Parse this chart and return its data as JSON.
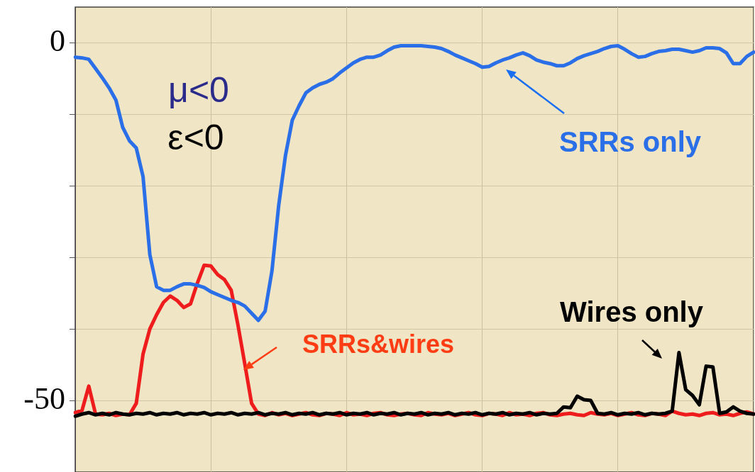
{
  "chart_data": {
    "type": "line",
    "categories": [
      null,
      null,
      null,
      null,
      null,
      null,
      null,
      null,
      null,
      null,
      null,
      null,
      null,
      null,
      null,
      null,
      null,
      null,
      null,
      null,
      null,
      null,
      null,
      null,
      null,
      null,
      null,
      null,
      null,
      null,
      null,
      null,
      null,
      null,
      null,
      null,
      null,
      null,
      null,
      null,
      null,
      null,
      null,
      null,
      null,
      null,
      null,
      null,
      null,
      null,
      null,
      null,
      null,
      null,
      null,
      null,
      null,
      null,
      null,
      null,
      null,
      null,
      null,
      null,
      null,
      null,
      null,
      null,
      null,
      null,
      null,
      null,
      null,
      null,
      null,
      null,
      null,
      null,
      null,
      null,
      null,
      null,
      null,
      null,
      null,
      null,
      null,
      null,
      null,
      null,
      null,
      null,
      null,
      null,
      null,
      null,
      null,
      null,
      null,
      null,
      null
    ],
    "series": [
      {
        "name": "SRRs only",
        "color": "#2a6fe8",
        "values": [
          -2.0,
          -2.1,
          -2.3,
          -3.6,
          -4.9,
          -6.3,
          -8.0,
          -11.8,
          -13.7,
          -14.7,
          -18.7,
          -29.6,
          -34.1,
          -34.6,
          -34.6,
          -34.1,
          -33.7,
          -33.7,
          -33.9,
          -34.2,
          -34.8,
          -35.2,
          -35.6,
          -36.0,
          -36.3,
          -36.8,
          -37.8,
          -38.8,
          -37.5,
          -31.9,
          -22.7,
          -15.7,
          -10.8,
          -8.8,
          -7.0,
          -6.3,
          -5.8,
          -5.5,
          -5.0,
          -4.2,
          -3.5,
          -2.8,
          -2.3,
          -2.0,
          -2.0,
          -1.7,
          -1.1,
          -0.6,
          -0.4,
          -0.4,
          -0.4,
          -0.4,
          -0.5,
          -0.6,
          -0.8,
          -1.2,
          -1.7,
          -2.1,
          -2.5,
          -2.9,
          -3.4,
          -3.3,
          -2.8,
          -2.4,
          -2.1,
          -1.7,
          -1.4,
          -1.8,
          -2.4,
          -2.7,
          -2.9,
          -3.2,
          -3.2,
          -2.8,
          -2.2,
          -1.8,
          -1.5,
          -1.2,
          -0.8,
          -0.5,
          -0.4,
          -0.9,
          -1.5,
          -2.0,
          -1.9,
          -1.5,
          -1.2,
          -1.1,
          -0.9,
          -0.9,
          -1.1,
          -1.3,
          -1.1,
          -0.7,
          -0.7,
          -0.8,
          -1.4,
          -2.9,
          -2.9,
          -1.9,
          -1.3
        ]
      },
      {
        "name": "Wires only",
        "color": "#000000",
        "values": [
          -52.2,
          -51.9,
          -51.7,
          -52.0,
          -51.8,
          -52.0,
          -51.7,
          -51.9,
          -52.0,
          -51.8,
          -51.9,
          -51.7,
          -52.0,
          -51.8,
          -51.9,
          -51.7,
          -52.0,
          -51.8,
          -51.9,
          -51.7,
          -52.0,
          -51.8,
          -51.9,
          -51.7,
          -52.0,
          -51.8,
          -51.9,
          -51.7,
          -52.0,
          -51.8,
          -51.9,
          -51.7,
          -52.0,
          -51.8,
          -51.9,
          -51.7,
          -52.0,
          -51.8,
          -51.9,
          -51.7,
          -52.0,
          -51.8,
          -51.9,
          -51.7,
          -52.0,
          -51.8,
          -51.9,
          -51.7,
          -52.0,
          -51.8,
          -51.9,
          -51.7,
          -52.0,
          -51.8,
          -51.9,
          -51.7,
          -52.0,
          -51.8,
          -51.9,
          -51.7,
          -52.0,
          -51.8,
          -51.9,
          -51.7,
          -52.0,
          -51.8,
          -51.9,
          -51.7,
          -52.0,
          -51.8,
          -51.9,
          -51.8,
          -50.9,
          -51.0,
          -49.4,
          -49.9,
          -50.0,
          -51.8,
          -51.9,
          -51.7,
          -52.0,
          -51.8,
          -51.9,
          -51.7,
          -52.0,
          -51.8,
          -51.9,
          -51.8,
          -51.5,
          -43.3,
          -48.5,
          -49.3,
          -50.6,
          -45.2,
          -45.3,
          -51.8,
          -51.6,
          -50.9,
          -51.5,
          -51.8,
          -51.9
        ]
      },
      {
        "name": "SRRs&wires",
        "color": "#ee1c1c",
        "values": [
          -51.7,
          -51.4,
          -48.0,
          -51.9,
          -52.0,
          -51.8,
          -52.1,
          -51.9,
          -52.0,
          -50.4,
          -43.5,
          -40.0,
          -38.0,
          -36.3,
          -35.4,
          -36.0,
          -37.0,
          -36.5,
          -33.6,
          -31.1,
          -31.2,
          -32.4,
          -33.1,
          -34.6,
          -39.5,
          -44.9,
          -50.4,
          -51.9,
          -52.1,
          -51.7,
          -52.0,
          -51.8,
          -52.1,
          -51.9,
          -51.7,
          -52.0,
          -52.1,
          -51.8,
          -51.9,
          -52.1,
          -51.7,
          -52.0,
          -51.9,
          -52.1,
          -51.8,
          -51.7,
          -52.0,
          -52.1,
          -51.9,
          -51.8,
          -52.0,
          -52.1,
          -51.7,
          -51.9,
          -52.0,
          -51.8,
          -52.1,
          -51.9,
          -51.7,
          -52.0,
          -52.1,
          -51.8,
          -51.9,
          -52.1,
          -51.7,
          -52.0,
          -51.9,
          -52.1,
          -51.8,
          -51.7,
          -52.0,
          -52.1,
          -51.9,
          -51.8,
          -52.0,
          -52.1,
          -51.7,
          -51.9,
          -52.0,
          -51.8,
          -52.1,
          -51.9,
          -51.7,
          -52.0,
          -52.1,
          -51.8,
          -51.9,
          -52.1,
          -51.5,
          -51.8,
          -52.0,
          -51.9,
          -52.1,
          -51.8,
          -51.7,
          -52.0,
          -51.9,
          -52.1,
          -51.8,
          -51.6,
          -51.9
        ]
      }
    ],
    "ylim": [
      -60,
      5
    ],
    "yticks": [
      {
        "value": -60,
        "label": null
      },
      -50,
      {
        "value": -40,
        "label": null
      },
      {
        "value": -30,
        "label": null
      },
      {
        "value": -20,
        "label": null
      },
      {
        "value": -10,
        "label": null
      },
      0
    ],
    "annotations": [
      "μ<0",
      "ε<0"
    ],
    "grid": true,
    "legend": false,
    "marker": "none",
    "line_style": "solid"
  }
}
